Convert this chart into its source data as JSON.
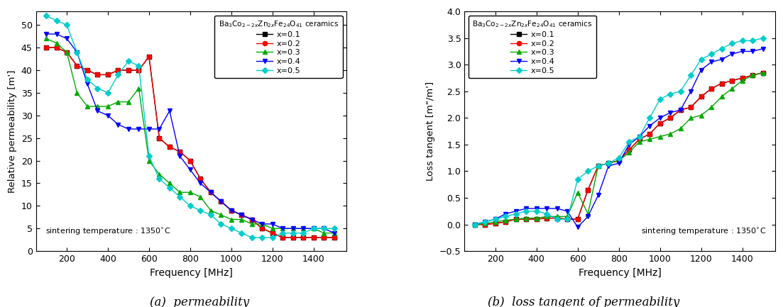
{
  "perm_freq": [
    100,
    150,
    200,
    250,
    300,
    350,
    400,
    450,
    500,
    550,
    600,
    650,
    700,
    750,
    800,
    850,
    900,
    950,
    1000,
    1050,
    1100,
    1150,
    1200,
    1250,
    1300,
    1350,
    1400,
    1450,
    1500
  ],
  "perm_x01": [
    45,
    45,
    44,
    41,
    40,
    39,
    39,
    40,
    40,
    40,
    43,
    25,
    23,
    22,
    20,
    16,
    13,
    11,
    9,
    8,
    7,
    5,
    4,
    3,
    3,
    3,
    3,
    3,
    3
  ],
  "perm_x02": [
    45,
    45,
    44,
    41,
    40,
    39,
    39,
    40,
    40,
    40,
    43,
    25,
    23,
    22,
    20,
    16,
    13,
    11,
    9,
    8,
    7,
    5,
    4,
    3,
    3,
    3,
    3,
    3,
    3
  ],
  "perm_x03": [
    47,
    46,
    44,
    35,
    32,
    32,
    32,
    33,
    33,
    36,
    20,
    17,
    15,
    13,
    13,
    12,
    9,
    8,
    7,
    7,
    6,
    6,
    5,
    5,
    5,
    5,
    5,
    4,
    4
  ],
  "perm_x04": [
    48,
    48,
    47,
    44,
    37,
    31,
    30,
    28,
    27,
    27,
    27,
    27,
    31,
    21,
    18,
    15,
    13,
    11,
    9,
    8,
    7,
    6,
    6,
    5,
    5,
    5,
    5,
    5,
    4
  ],
  "perm_x05": [
    52,
    51,
    50,
    44,
    38,
    36,
    35,
    39,
    42,
    41,
    21,
    16,
    14,
    12,
    10,
    9,
    8,
    6,
    5,
    4,
    3,
    3,
    3,
    4,
    4,
    4,
    5,
    5,
    5
  ],
  "loss_freq": [
    100,
    150,
    200,
    250,
    300,
    350,
    400,
    450,
    500,
    550,
    600,
    650,
    700,
    750,
    800,
    850,
    900,
    950,
    1000,
    1050,
    1100,
    1150,
    1200,
    1250,
    1300,
    1350,
    1400,
    1450,
    1500
  ],
  "loss_x01": [
    0.0,
    0.0,
    0.02,
    0.05,
    0.1,
    0.1,
    0.1,
    0.12,
    0.12,
    0.1,
    0.1,
    0.65,
    1.1,
    1.15,
    1.2,
    1.4,
    1.6,
    1.7,
    1.9,
    2.0,
    2.15,
    2.2,
    2.4,
    2.55,
    2.65,
    2.7,
    2.75,
    2.8,
    2.85
  ],
  "loss_x02": [
    0.0,
    0.0,
    0.02,
    0.05,
    0.1,
    0.1,
    0.1,
    0.12,
    0.12,
    0.1,
    0.1,
    0.65,
    1.1,
    1.15,
    1.2,
    1.4,
    1.6,
    1.7,
    1.9,
    2.0,
    2.15,
    2.2,
    2.4,
    2.55,
    2.65,
    2.7,
    2.75,
    2.8,
    2.85
  ],
  "loss_x03": [
    0.0,
    0.02,
    0.05,
    0.08,
    0.1,
    0.12,
    0.12,
    0.15,
    0.15,
    0.15,
    0.6,
    0.2,
    1.1,
    1.15,
    1.2,
    1.35,
    1.55,
    1.6,
    1.65,
    1.7,
    1.8,
    2.0,
    2.05,
    2.2,
    2.4,
    2.55,
    2.7,
    2.8,
    2.85
  ],
  "loss_x04": [
    0.0,
    0.05,
    0.1,
    0.2,
    0.25,
    0.3,
    0.3,
    0.3,
    0.3,
    0.25,
    -0.05,
    0.15,
    0.55,
    1.1,
    1.15,
    1.5,
    1.65,
    1.85,
    2.0,
    2.1,
    2.15,
    2.5,
    2.9,
    3.05,
    3.1,
    3.2,
    3.25,
    3.25,
    3.3
  ],
  "loss_x05": [
    0.0,
    0.05,
    0.1,
    0.15,
    0.2,
    0.25,
    0.25,
    0.2,
    0.1,
    0.1,
    0.85,
    1.0,
    1.1,
    1.15,
    1.25,
    1.55,
    1.65,
    2.0,
    2.35,
    2.45,
    2.5,
    2.8,
    3.1,
    3.2,
    3.3,
    3.4,
    3.45,
    3.45,
    3.5
  ],
  "colors": {
    "x01": "#000000",
    "x02": "#ff0000",
    "x03": "#00aa00",
    "x04": "#0000ff",
    "x05": "#00cccc"
  },
  "markers": {
    "x01": "s",
    "x02": "o",
    "x03": "^",
    "x04": "v",
    "x05": "D"
  },
  "legend_labels": [
    "x=0.1",
    "x=0.2",
    "x=0.3",
    "x=0.4",
    "x=0.5"
  ],
  "formula": "Ba$_3$Co$_{2-2x}$Zn$_{2x}$Fe$_{24}$O$_{41}$ ceramics",
  "sintering_text": "sintering temperature : 1350$^{\\circ}$C",
  "xlabel": "Frequency [MHz]",
  "ylabel_a": "Relative permeability [m']",
  "ylabel_b": "Loss tangent [m\"/m']",
  "caption_a": "(a)  permeability",
  "caption_b": "(b)  loss tangent of permeability",
  "xlim": [
    50,
    1560
  ],
  "ylim_a": [
    0,
    53
  ],
  "ylim_b": [
    -0.5,
    4.0
  ],
  "yticks_a": [
    0,
    5,
    10,
    15,
    20,
    25,
    30,
    35,
    40,
    45,
    50
  ],
  "yticks_b": [
    -0.5,
    0.0,
    0.5,
    1.0,
    1.5,
    2.0,
    2.5,
    3.0,
    3.5,
    4.0
  ],
  "xticks": [
    200,
    400,
    600,
    800,
    1000,
    1200,
    1400
  ]
}
